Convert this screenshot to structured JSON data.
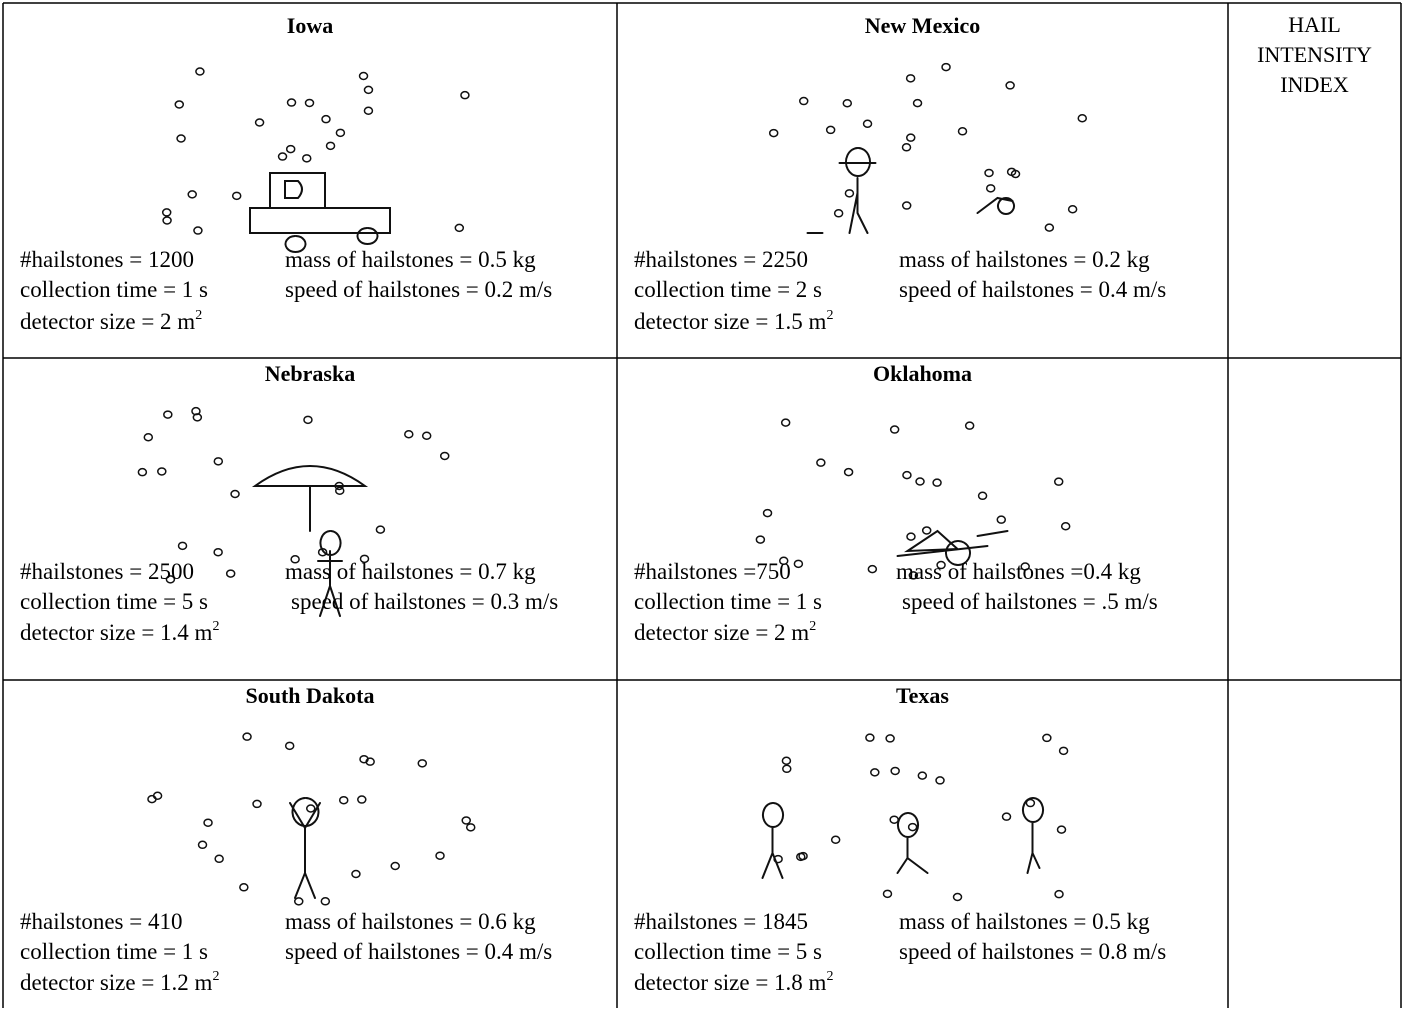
{
  "header": {
    "lines": [
      "HAIL",
      "INTENSITY",
      "INDEX"
    ]
  },
  "cells": [
    {
      "title": "Iowa",
      "hailstones": "#hailstones = 1200",
      "mass": "mass of hailstones = 0.5 kg",
      "collection_time": "collection time = 1 s",
      "speed": "speed of hailstones = 0.2 m/s",
      "detector_size": "detector size = 2 m",
      "detector_exp": "2"
    },
    {
      "title": "New Mexico",
      "hailstones": "#hailstones = 2250",
      "mass": "mass of hailstones = 0.2 kg",
      "collection_time": "collection time = 2 s",
      "speed": "speed of hailstones = 0.4 m/s",
      "detector_size": "detector size = 1.5 m",
      "detector_exp": "2"
    },
    {
      "title": "Nebraska",
      "hailstones": "#hailstones = 2500",
      "mass": "mass of hailstones = 0.7 kg",
      "collection_time": "collection time = 5 s",
      "speed": "speed of hailstones = 0.3 m/s",
      "detector_size": "detector size = 1.4 m",
      "detector_exp": "2"
    },
    {
      "title": "Oklahoma",
      "hailstones": "#hailstones =750",
      "mass": "mass of hailstones =0.4 kg",
      "collection_time": "collection time = 1 s",
      "speed": "speed of hailstones = .5 m/s",
      "detector_size": "detector size = 2 m",
      "detector_exp": "2"
    },
    {
      "title": "South Dakota",
      "hailstones": "#hailstones = 410",
      "mass": "mass of hailstones = 0.6 kg",
      "collection_time": "collection time = 1 s",
      "speed": "speed of hailstones = 0.4 m/s",
      "detector_size": "detector size = 1.2 m",
      "detector_exp": "2"
    },
    {
      "title": "Texas",
      "hailstones": "#hailstones = 1845",
      "mass": "mass of hailstones = 0.5 kg",
      "collection_time": "collection time = 5 s",
      "speed": "speed of hailstones = 0.8 m/s",
      "detector_size": "detector size = 1.8 m",
      "detector_exp": "2"
    }
  ]
}
